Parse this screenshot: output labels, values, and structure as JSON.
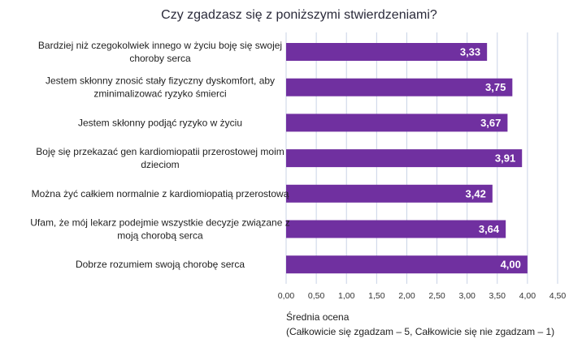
{
  "chart_data": {
    "type": "bar",
    "orientation": "horizontal",
    "title": "Czy zgadzasz się z poniższymi stwierdzeniami?",
    "xlabel_line1": "Średnia ocena",
    "xlabel_line2": "(Całkowicie się zgadzam – 5, Całkowicie się nie zgadzam – 1)",
    "categories": [
      [
        "Bardziej niż czegokolwiek innego w życiu boję się swojej",
        "choroby serca"
      ],
      [
        "Jestem skłonny znosić stały fizyczny dyskomfort, aby",
        "zminimalizować ryzyko śmierci"
      ],
      [
        "Jestem skłonny podjąć ryzyko w życiu"
      ],
      [
        "Boję się przekazać gen kardiomiopatii przerostowej moim",
        "dzieciom"
      ],
      [
        "Można żyć całkiem normalnie z kardiomiopatią przerostową"
      ],
      [
        "Ufam, że mój lekarz podejmie wszystkie decyzje związane z",
        "moją chorobą serca"
      ],
      [
        "Dobrze rozumiem swoją chorobę serca"
      ]
    ],
    "values": [
      3.33,
      3.75,
      3.67,
      3.91,
      3.42,
      3.64,
      4.0
    ],
    "value_labels": [
      "3,33",
      "3,75",
      "3,67",
      "3,91",
      "3,42",
      "3,64",
      "4,00"
    ],
    "xlim": [
      0,
      4.5
    ],
    "ticks": [
      0,
      0.5,
      1,
      1.5,
      2,
      2.5,
      3,
      3.5,
      4,
      4.5
    ],
    "tick_labels": [
      "0,00",
      "0,50",
      "1,00",
      "1,50",
      "2,00",
      "2,50",
      "3,00",
      "3,50",
      "4,00",
      "4,50"
    ],
    "grid": true,
    "bar_color": "#7030a0",
    "grid_color": "#c9d3e6"
  }
}
